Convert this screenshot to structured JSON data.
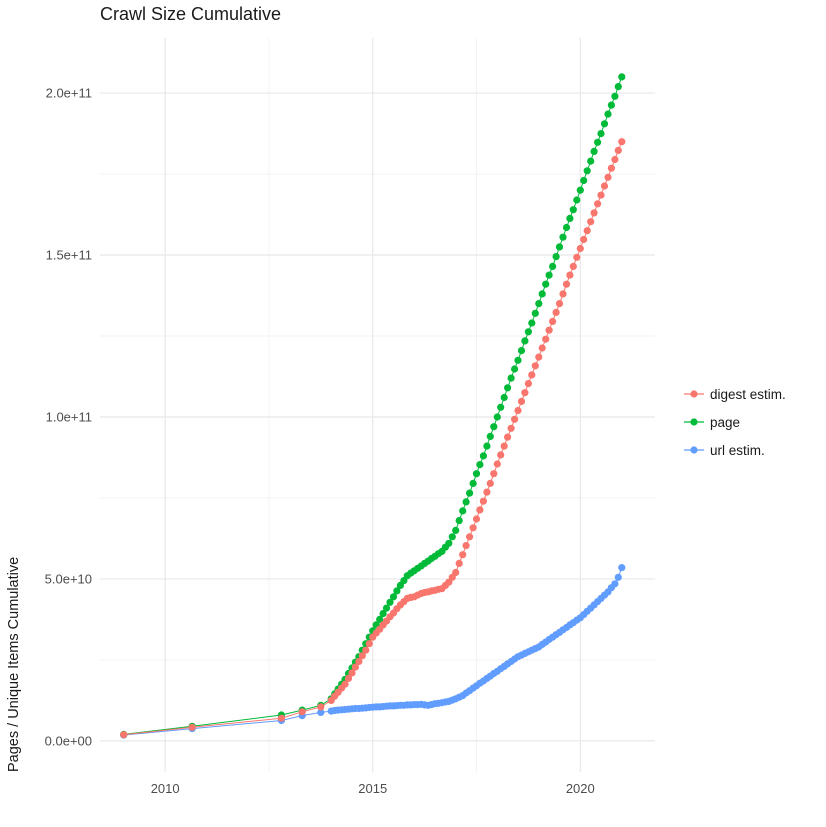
{
  "chart_data": {
    "type": "scatter",
    "title": "Crawl Size Cumulative",
    "xlabel": "",
    "ylabel": "Pages / Unique Items Cumulative",
    "y_values_scale": "billions (1e9) of pages / unique items",
    "xlim": [
      2008.43,
      2021.8
    ],
    "ylim": [
      -9.6,
      217
    ],
    "x_ticks": [
      {
        "v": 2010,
        "label": "2010"
      },
      {
        "v": 2015,
        "label": "2015"
      },
      {
        "v": 2020,
        "label": "2020"
      }
    ],
    "y_ticks": [
      {
        "v": 0,
        "label": "0.0e+00"
      },
      {
        "v": 50,
        "label": "5.0e+10"
      },
      {
        "v": 100,
        "label": "1.0e+11"
      },
      {
        "v": 150,
        "label": "1.5e+11"
      },
      {
        "v": 200,
        "label": "2.0e+11"
      }
    ],
    "grid": {
      "major_color": "#e8e8e8",
      "minor_color": "#f2f2f2",
      "x_minor": [
        2012.5,
        2017.5
      ],
      "y_minor": [
        25,
        75,
        125,
        175
      ]
    },
    "legend_position": "right",
    "draw_order": [
      2,
      1,
      0
    ],
    "x_shared": [
      2009,
      2010.65,
      2012.8,
      2013.3,
      2013.75,
      2014,
      2014.083,
      2014.167,
      2014.25,
      2014.333,
      2014.417,
      2014.5,
      2014.583,
      2014.667,
      2014.75,
      2014.833,
      2014.917,
      2015,
      2015.083,
      2015.167,
      2015.25,
      2015.333,
      2015.417,
      2015.5,
      2015.583,
      2015.667,
      2015.75,
      2015.833,
      2015.917,
      2016,
      2016.083,
      2016.167,
      2016.25,
      2016.333,
      2016.417,
      2016.5,
      2016.583,
      2016.667,
      2016.75,
      2016.833,
      2016.917,
      2017,
      2017.083,
      2017.167,
      2017.25,
      2017.333,
      2017.417,
      2017.5,
      2017.583,
      2017.667,
      2017.75,
      2017.833,
      2017.917,
      2018,
      2018.083,
      2018.167,
      2018.25,
      2018.333,
      2018.417,
      2018.5,
      2018.583,
      2018.667,
      2018.75,
      2018.833,
      2018.917,
      2019,
      2019.083,
      2019.167,
      2019.25,
      2019.333,
      2019.417,
      2019.5,
      2019.583,
      2019.667,
      2019.75,
      2019.833,
      2019.917,
      2020,
      2020.083,
      2020.167,
      2020.25,
      2020.333,
      2020.417,
      2020.5,
      2020.583,
      2020.667,
      2020.75,
      2020.833,
      2020.917,
      2021
    ],
    "series": [
      {
        "id": "digest-estim",
        "name": "digest estim.",
        "color": "#F8766D",
        "y": [
          1.9,
          4.2,
          7,
          9,
          10.5,
          12.5,
          13.8,
          15,
          16.3,
          17.5,
          19.3,
          21,
          22.8,
          24.5,
          26.3,
          28,
          30,
          32,
          33.3,
          34.5,
          35.8,
          37,
          38.3,
          39.5,
          40.8,
          42,
          43,
          44,
          44.3,
          44.5,
          45,
          45.5,
          45.8,
          46,
          46.3,
          46.5,
          46.8,
          47,
          48,
          49,
          50.5,
          52,
          54.8,
          57.5,
          60.3,
          63,
          65.8,
          68.5,
          71.3,
          74,
          76.8,
          79.5,
          82.5,
          85.5,
          88.3,
          91,
          93.8,
          96.5,
          99.3,
          102,
          104.8,
          107.5,
          110.3,
          113,
          115.8,
          118.5,
          121.3,
          124,
          126.8,
          129.5,
          132.3,
          135,
          138,
          141,
          143.8,
          146.5,
          149.3,
          152,
          154.8,
          157.5,
          160.3,
          163,
          165.8,
          168.5,
          171.3,
          174,
          176.8,
          179.5,
          182.3,
          185
        ]
      },
      {
        "id": "page",
        "name": "page",
        "color": "#00BA38",
        "y": [
          2,
          4.5,
          8,
          9.5,
          11,
          13,
          14.5,
          16,
          17.5,
          19,
          20.8,
          22.5,
          24.3,
          26,
          28,
          30,
          32,
          34,
          35.8,
          37.5,
          39.3,
          41,
          42.8,
          44.5,
          46.3,
          48,
          49.5,
          51,
          51.8,
          52.5,
          53.3,
          54,
          54.8,
          55.5,
          56.3,
          57,
          57.8,
          58.5,
          59.8,
          61,
          63,
          65,
          68,
          71,
          73.8,
          76.5,
          79.5,
          82.5,
          85.3,
          88,
          91,
          94,
          97,
          100,
          103,
          106,
          109,
          112,
          114.8,
          117.5,
          120.5,
          123.5,
          126.3,
          129,
          132,
          135,
          138,
          141,
          143.8,
          146.5,
          149.5,
          152.5,
          155.5,
          158.5,
          161.3,
          164,
          167,
          170,
          173,
          176,
          179,
          182,
          184.8,
          187.5,
          190.5,
          193.5,
          196.3,
          199,
          202,
          205
        ]
      },
      {
        "id": "url-estim",
        "name": "url estim.",
        "color": "#619CFF",
        "y": [
          1.8,
          3.8,
          6.3,
          7.8,
          8.8,
          9.2,
          9.4,
          9.5,
          9.6,
          9.7,
          9.8,
          9.9,
          10,
          10,
          10.1,
          10.2,
          10.3,
          10.4,
          10.5,
          10.5,
          10.6,
          10.7,
          10.8,
          10.8,
          10.9,
          11,
          11,
          11.1,
          11.1,
          11.2,
          11.2,
          11.3,
          11.1,
          11,
          11.2,
          11.5,
          11.6,
          11.8,
          12,
          12.2,
          12.6,
          13,
          13.5,
          14,
          14.8,
          15.5,
          16.3,
          17,
          17.8,
          18.5,
          19.3,
          20,
          20.8,
          21.5,
          22.3,
          23,
          23.8,
          24.5,
          25.3,
          26,
          26.5,
          27,
          27.5,
          28,
          28.5,
          29,
          29.8,
          30.5,
          31.3,
          32,
          32.8,
          33.5,
          34.3,
          35,
          35.8,
          36.5,
          37.3,
          38,
          39,
          40,
          41,
          42,
          43,
          44,
          45,
          46,
          47.3,
          48.5,
          50.5,
          53.5
        ]
      }
    ]
  }
}
